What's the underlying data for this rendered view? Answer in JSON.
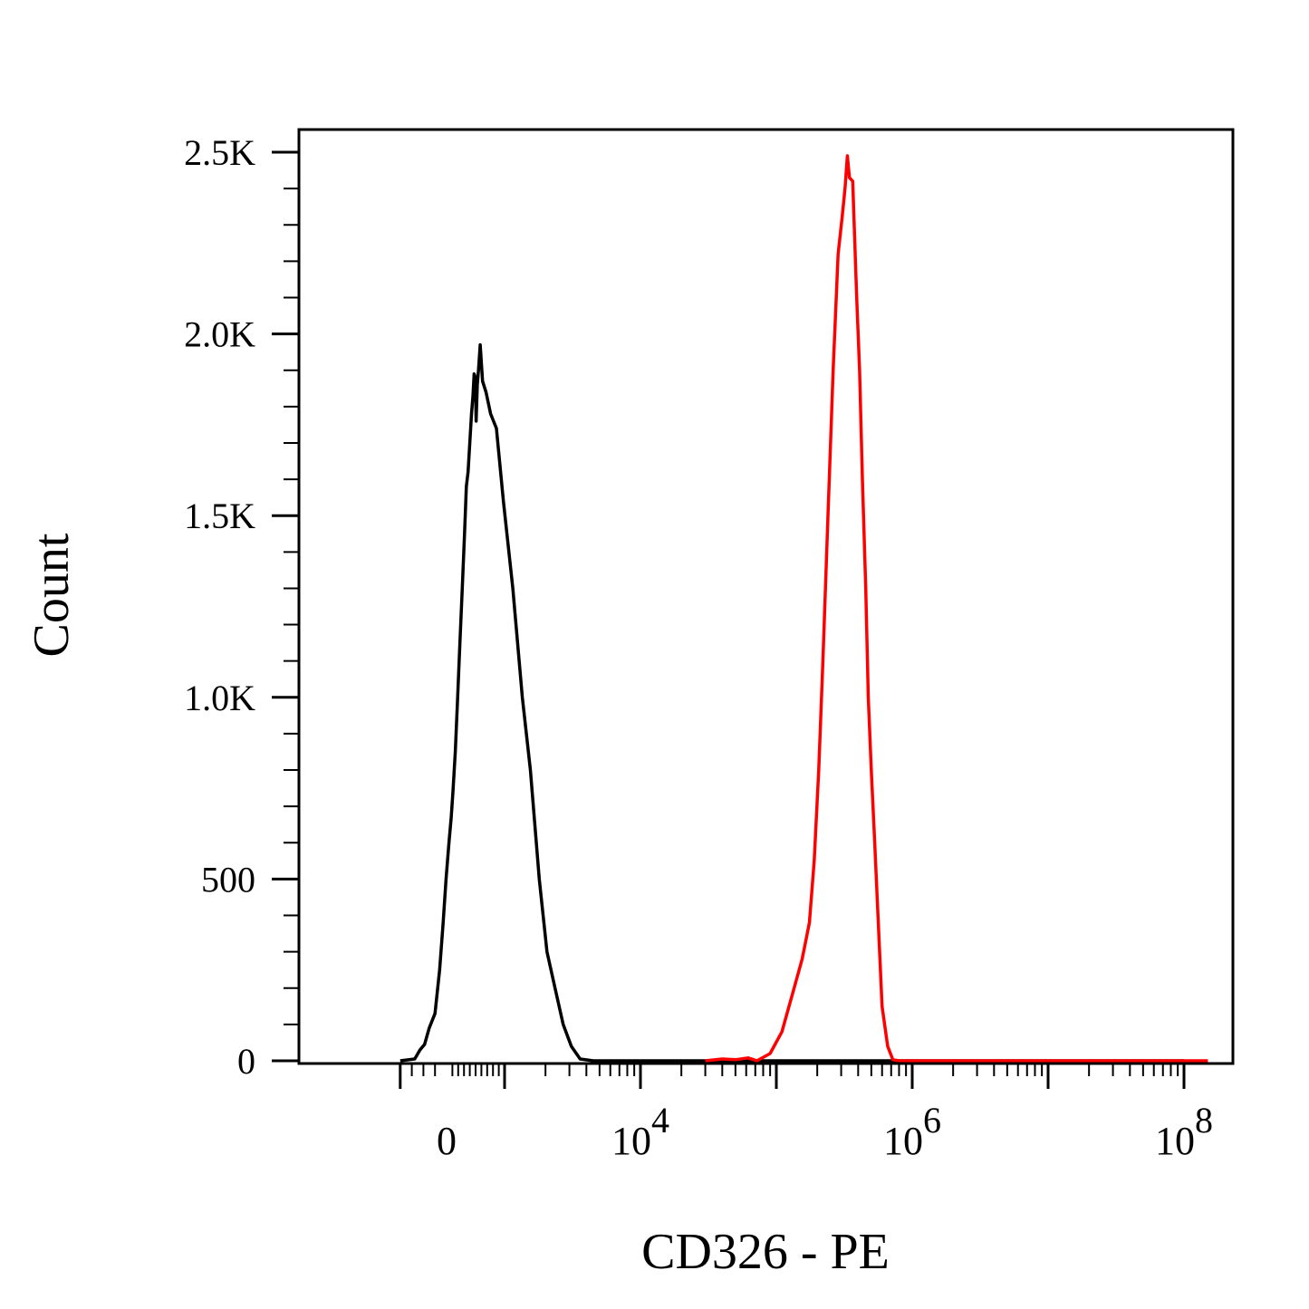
{
  "chart_data": {
    "type": "line",
    "xlabel": "CD326 - PE",
    "ylabel": "Count",
    "x_scale": "biexponential",
    "xlim": [
      -800,
      150000000
    ],
    "ylim": [
      0,
      2560
    ],
    "grid": false,
    "x_tick_labels": [
      {
        "value": 0,
        "base": "0",
        "exp": ""
      },
      {
        "value": 10000,
        "base": "10",
        "exp": "4"
      },
      {
        "value": 1000000,
        "base": "10",
        "exp": "6"
      },
      {
        "value": 100000000,
        "base": "10",
        "exp": "8"
      }
    ],
    "y_ticks": [
      0,
      500,
      1000,
      1500,
      2000,
      2500
    ],
    "y_tick_labels": [
      "0",
      "500",
      "1.0K",
      "1.5K",
      "2.0K",
      "2.5K"
    ],
    "series": [
      {
        "color": "#000000",
        "points": [
          [
            -800,
            0
          ],
          [
            -550,
            5
          ],
          [
            -460,
            30
          ],
          [
            -380,
            45
          ],
          [
            -300,
            90
          ],
          [
            -200,
            130
          ],
          [
            -120,
            250
          ],
          [
            -60,
            380
          ],
          [
            -10,
            500
          ],
          [
            40,
            600
          ],
          [
            80,
            670
          ],
          [
            110,
            740
          ],
          [
            150,
            850
          ],
          [
            190,
            1000
          ],
          [
            230,
            1150
          ],
          [
            270,
            1300
          ],
          [
            310,
            1450
          ],
          [
            340,
            1580
          ],
          [
            370,
            1620
          ],
          [
            400,
            1700
          ],
          [
            430,
            1780
          ],
          [
            455,
            1830
          ],
          [
            475,
            1890
          ],
          [
            495,
            1880
          ],
          [
            510,
            1760
          ],
          [
            530,
            1860
          ],
          [
            550,
            1900
          ],
          [
            580,
            1970
          ],
          [
            620,
            1870
          ],
          [
            680,
            1840
          ],
          [
            760,
            1780
          ],
          [
            860,
            1740
          ],
          [
            980,
            1540
          ],
          [
            1150,
            1300
          ],
          [
            1350,
            1000
          ],
          [
            1550,
            800
          ],
          [
            1800,
            500
          ],
          [
            2050,
            300
          ],
          [
            2350,
            200
          ],
          [
            2700,
            100
          ],
          [
            3100,
            40
          ],
          [
            3600,
            5
          ],
          [
            4500,
            0
          ],
          [
            10000,
            0
          ],
          [
            30000,
            0
          ],
          [
            100000000,
            0
          ]
        ]
      },
      {
        "color": "#ff0000",
        "points": [
          [
            30000,
            0
          ],
          [
            40000,
            5
          ],
          [
            50000,
            3
          ],
          [
            62000,
            8
          ],
          [
            72000,
            0
          ],
          [
            90000,
            20
          ],
          [
            110000,
            80
          ],
          [
            135000,
            200
          ],
          [
            155000,
            280
          ],
          [
            175000,
            380
          ],
          [
            190000,
            550
          ],
          [
            205000,
            800
          ],
          [
            220000,
            1100
          ],
          [
            240000,
            1500
          ],
          [
            262000,
            1900
          ],
          [
            285000,
            2220
          ],
          [
            305000,
            2320
          ],
          [
            320000,
            2400
          ],
          [
            333000,
            2490
          ],
          [
            345000,
            2430
          ],
          [
            365000,
            2420
          ],
          [
            390000,
            2100
          ],
          [
            410000,
            1900
          ],
          [
            430000,
            1600
          ],
          [
            455000,
            1300
          ],
          [
            475000,
            1000
          ],
          [
            500000,
            800
          ],
          [
            530000,
            600
          ],
          [
            560000,
            400
          ],
          [
            600000,
            150
          ],
          [
            660000,
            40
          ],
          [
            720000,
            3
          ],
          [
            800000,
            0
          ],
          [
            2000000,
            0
          ],
          [
            100000000,
            0
          ],
          [
            150000000,
            0
          ]
        ]
      }
    ]
  }
}
